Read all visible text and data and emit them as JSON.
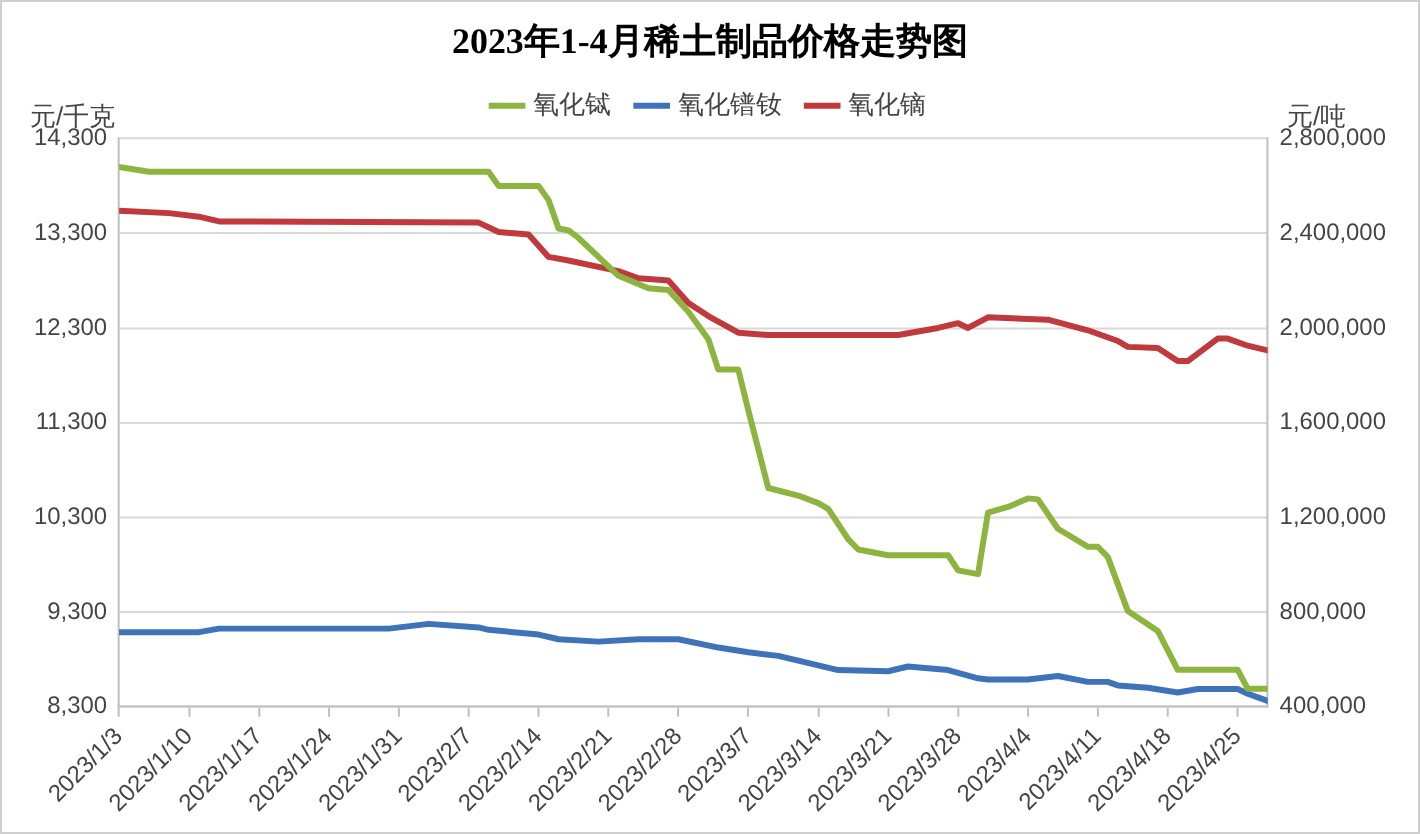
{
  "chart_data": {
    "type": "line",
    "title": "2023年1-4月稀土制品价格走势图",
    "ylabel": "元/千克",
    "y2label": "元/吨",
    "xlim": [
      "2023-01-03",
      "2023-04-28"
    ],
    "xticks": [
      {
        "value": "2023-01-03",
        "label": "2023/1/3"
      },
      {
        "value": "2023-01-10",
        "label": "2023/1/10"
      },
      {
        "value": "2023-01-17",
        "label": "2023/1/17"
      },
      {
        "value": "2023-01-24",
        "label": "2023/1/24"
      },
      {
        "value": "2023-01-31",
        "label": "2023/1/31"
      },
      {
        "value": "2023-02-07",
        "label": "2023/2/7"
      },
      {
        "value": "2023-02-14",
        "label": "2023/2/14"
      },
      {
        "value": "2023-02-21",
        "label": "2023/2/21"
      },
      {
        "value": "2023-02-28",
        "label": "2023/2/28"
      },
      {
        "value": "2023-03-07",
        "label": "2023/3/7"
      },
      {
        "value": "2023-03-14",
        "label": "2023/3/14"
      },
      {
        "value": "2023-03-21",
        "label": "2023/3/21"
      },
      {
        "value": "2023-03-28",
        "label": "2023/3/28"
      },
      {
        "value": "2023-04-04",
        "label": "2023/4/4"
      },
      {
        "value": "2023-04-11",
        "label": "2023/4/11"
      },
      {
        "value": "2023-04-18",
        "label": "2023/4/18"
      },
      {
        "value": "2023-04-25",
        "label": "2023/4/25"
      }
    ],
    "ylim": [
      8300,
      14300
    ],
    "yticks": [
      {
        "value": 8300,
        "label": "8,300"
      },
      {
        "value": 9300,
        "label": "9,300"
      },
      {
        "value": 10300,
        "label": "10,300"
      },
      {
        "value": 11300,
        "label": "11,300"
      },
      {
        "value": 12300,
        "label": "12,300"
      },
      {
        "value": 13300,
        "label": "13,300"
      },
      {
        "value": 14300,
        "label": "14,300"
      }
    ],
    "y2lim": [
      400000,
      2800000
    ],
    "y2ticks": [
      {
        "value": 400000,
        "label": "400,000"
      },
      {
        "value": 800000,
        "label": "800,000"
      },
      {
        "value": 1200000,
        "label": "1,200,000"
      },
      {
        "value": 1600000,
        "label": "1,600,000"
      },
      {
        "value": 2000000,
        "label": "2,000,000"
      },
      {
        "value": 2400000,
        "label": "2,400,000"
      },
      {
        "value": 2800000,
        "label": "2,800,000"
      }
    ],
    "grid": "y",
    "legend": "top",
    "marker": "none",
    "line_style": "solid",
    "series": [
      {
        "name": "氧化铽",
        "color": "#8db43e",
        "x": [
          "2023-01-03",
          "2023-01-06",
          "2023-02-09",
          "2023-02-10",
          "2023-02-14",
          "2023-02-15",
          "2023-02-16",
          "2023-02-17",
          "2023-02-18",
          "2023-02-22",
          "2023-02-25",
          "2023-02-27",
          "2023-03-01",
          "2023-03-03",
          "2023-03-04",
          "2023-03-06",
          "2023-03-07",
          "2023-03-09",
          "2023-03-12",
          "2023-03-14",
          "2023-03-15",
          "2023-03-17",
          "2023-03-18",
          "2023-03-21",
          "2023-03-27",
          "2023-03-28",
          "2023-03-30",
          "2023-03-31",
          "2023-04-02",
          "2023-04-04",
          "2023-04-05",
          "2023-04-07",
          "2023-04-10",
          "2023-04-11",
          "2023-04-12",
          "2023-04-14",
          "2023-04-17",
          "2023-04-19",
          "2023-04-25",
          "2023-04-26",
          "2023-04-28"
        ],
        "values": [
          14000,
          13950,
          13950,
          13800,
          13800,
          13650,
          13350,
          13330,
          13250,
          12850,
          12720,
          12700,
          12470,
          12180,
          11860,
          11860,
          11430,
          10610,
          10530,
          10450,
          10390,
          10070,
          9960,
          9900,
          9900,
          9740,
          9700,
          10350,
          10410,
          10500,
          10490,
          10180,
          9990,
          9990,
          9880,
          9310,
          9100,
          8690,
          8690,
          8490,
          8490
        ]
      },
      {
        "name": "氧化镨钕",
        "color": "#3e73b9",
        "axis": "y2",
        "x": [
          "2023-01-03",
          "2023-01-11",
          "2023-01-13",
          "2023-01-30",
          "2023-02-03",
          "2023-02-08",
          "2023-02-09",
          "2023-02-14",
          "2023-02-16",
          "2023-02-20",
          "2023-02-24",
          "2023-02-28",
          "2023-03-04",
          "2023-03-07",
          "2023-03-10",
          "2023-03-16",
          "2023-03-21",
          "2023-03-23",
          "2023-03-27",
          "2023-03-30",
          "2023-03-31",
          "2023-04-04",
          "2023-04-07",
          "2023-04-10",
          "2023-04-12",
          "2023-04-13",
          "2023-04-16",
          "2023-04-19",
          "2023-04-21",
          "2023-04-25",
          "2023-04-26",
          "2023-04-28"
        ],
        "values": [
          715000,
          715000,
          730000,
          730000,
          750000,
          735000,
          725000,
          705000,
          685000,
          675000,
          685000,
          685000,
          650000,
          630000,
          615000,
          555000,
          550000,
          570000,
          555000,
          520000,
          515000,
          515000,
          530000,
          505000,
          505000,
          490000,
          480000,
          460000,
          475000,
          475000,
          455000,
          425000
        ]
      },
      {
        "name": "氧化镝",
        "color": "#c0393c",
        "axis": "y2",
        "x": [
          "2023-01-03",
          "2023-01-08",
          "2023-01-11",
          "2023-01-13",
          "2023-02-08",
          "2023-02-10",
          "2023-02-13",
          "2023-02-15",
          "2023-02-17",
          "2023-02-22",
          "2023-02-24",
          "2023-02-27",
          "2023-03-01",
          "2023-03-03",
          "2023-03-06",
          "2023-03-09",
          "2023-03-22",
          "2023-03-26",
          "2023-03-28",
          "2023-03-29",
          "2023-03-31",
          "2023-04-06",
          "2023-04-10",
          "2023-04-13",
          "2023-04-14",
          "2023-04-17",
          "2023-04-19",
          "2023-04-20",
          "2023-04-23",
          "2023-04-24",
          "2023-04-26",
          "2023-04-28"
        ],
        "values": [
          2495000,
          2485000,
          2470000,
          2450000,
          2445000,
          2405000,
          2395000,
          2300000,
          2285000,
          2240000,
          2210000,
          2200000,
          2105000,
          2050000,
          1980000,
          1970000,
          1970000,
          2000000,
          2020000,
          2000000,
          2045000,
          2035000,
          1990000,
          1945000,
          1920000,
          1915000,
          1860000,
          1860000,
          1955000,
          1955000,
          1925000,
          1905000
        ]
      }
    ]
  }
}
